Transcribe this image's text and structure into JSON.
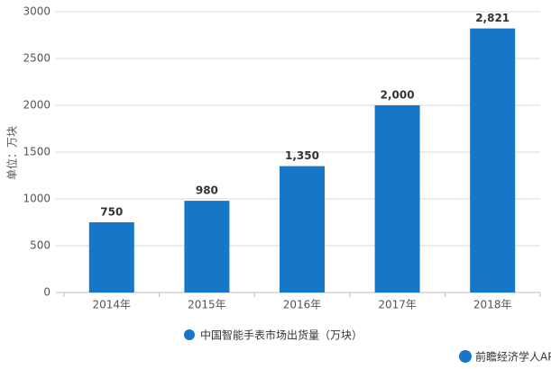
{
  "chart_data": {
    "type": "bar",
    "y_label": "单位：万块",
    "categories": [
      "2014年",
      "2015年",
      "2016年",
      "2017年",
      "2018年"
    ],
    "series": [
      {
        "name": "中国智能手表市场出货量（万块）",
        "color": "#1677c8",
        "values": [
          750,
          980,
          1350,
          2000,
          2821
        ],
        "value_labels": [
          "750",
          "980",
          "1,350",
          "2,000",
          "2,821"
        ]
      }
    ],
    "ylim": [
      0,
      3000
    ],
    "yticks": [
      0,
      500,
      1000,
      1500,
      2000,
      2500,
      3000
    ],
    "grid": true,
    "footer": "前瞻经济学人APP"
  }
}
